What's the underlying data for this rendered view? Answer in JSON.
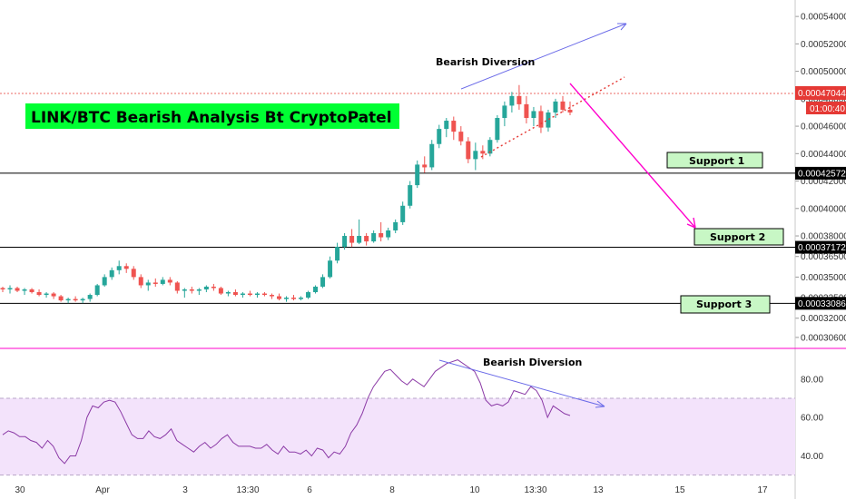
{
  "chart_data": [
    {
      "type": "candlestick",
      "title": "LINK/BTC Bearish Analysis Bt CryptoPatel",
      "ylim": [
        0.000298,
        0.000552
      ],
      "price_ticks": [
        "0.00054000",
        "0.00052000",
        "0.00050000",
        "0.00048000",
        "0.00046000",
        "0.00044000",
        "0.00042000",
        "0.00040000",
        "0.00038000",
        "0.00036500",
        "0.00035000",
        "0.00033500",
        "0.00032000",
        "0.00030600"
      ],
      "x_ticks": [
        "30",
        "Apr",
        "3",
        "13:30",
        "6",
        "8",
        "10",
        "13:30",
        "13",
        "15",
        "17"
      ],
      "current_price": "0.00047044",
      "countdown": "01:00:40",
      "supports": [
        {
          "label": "Support 1",
          "price": "0.00042572",
          "value": 0.00042572
        },
        {
          "label": "Support 2",
          "price": "0.00037172",
          "value": 0.00037172
        },
        {
          "label": "Support 3",
          "price": "0.00033086",
          "value": 0.00033086
        }
      ],
      "annotation": "Bearish Diversion",
      "candles": [
        [
          0.000342,
          0.000343,
          0.000339,
          0.000341
        ],
        [
          0.000341,
          0.000344,
          0.000338,
          0.000342
        ],
        [
          0.000342,
          0.000343,
          0.000339,
          0.00034
        ],
        [
          0.00034,
          0.000342,
          0.000337,
          0.000341
        ],
        [
          0.000341,
          0.000342,
          0.000338,
          0.000339
        ],
        [
          0.000339,
          0.000341,
          0.000336,
          0.000337
        ],
        [
          0.000337,
          0.000339,
          0.000335,
          0.000338
        ],
        [
          0.000338,
          0.000339,
          0.000334,
          0.000336
        ],
        [
          0.000336,
          0.000337,
          0.000332,
          0.000333
        ],
        [
          0.000333,
          0.000335,
          0.000331,
          0.000334
        ],
        [
          0.000334,
          0.000336,
          0.000332,
          0.000333
        ],
        [
          0.000333,
          0.000335,
          0.000331,
          0.000334
        ],
        [
          0.000334,
          0.000338,
          0.000332,
          0.000337
        ],
        [
          0.000337,
          0.000345,
          0.000336,
          0.000344
        ],
        [
          0.000344,
          0.000352,
          0.000343,
          0.00035
        ],
        [
          0.00035,
          0.000357,
          0.000348,
          0.000355
        ],
        [
          0.000355,
          0.000362,
          0.000352,
          0.000358
        ],
        [
          0.000358,
          0.00036,
          0.000353,
          0.000356
        ],
        [
          0.000356,
          0.000358,
          0.000348,
          0.00035
        ],
        [
          0.00035,
          0.000352,
          0.000342,
          0.000344
        ],
        [
          0.000344,
          0.000348,
          0.00034,
          0.000346
        ],
        [
          0.000346,
          0.000349,
          0.000343,
          0.000345
        ],
        [
          0.000345,
          0.00035,
          0.000344,
          0.000348
        ],
        [
          0.000348,
          0.00035,
          0.000344,
          0.000346
        ],
        [
          0.000346,
          0.000347,
          0.000338,
          0.00034
        ],
        [
          0.00034,
          0.000342,
          0.000335,
          0.000341
        ],
        [
          0.000341,
          0.000343,
          0.000338,
          0.00034
        ],
        [
          0.00034,
          0.000342,
          0.000337,
          0.000341
        ],
        [
          0.000341,
          0.000344,
          0.000339,
          0.000343
        ],
        [
          0.000343,
          0.000345,
          0.00034,
          0.000342
        ],
        [
          0.000342,
          0.000343,
          0.000337,
          0.000338
        ],
        [
          0.000338,
          0.00034,
          0.000336,
          0.000339
        ],
        [
          0.000339,
          0.000341,
          0.000336,
          0.000337
        ],
        [
          0.000337,
          0.000339,
          0.000335,
          0.000338
        ],
        [
          0.000338,
          0.00034,
          0.000336,
          0.000337
        ],
        [
          0.000337,
          0.000339,
          0.000335,
          0.000338
        ],
        [
          0.000338,
          0.000339,
          0.000336,
          0.000337
        ],
        [
          0.000337,
          0.000338,
          0.000334,
          0.000336
        ],
        [
          0.000336,
          0.000338,
          0.000333,
          0.000334
        ],
        [
          0.000334,
          0.000336,
          0.000332,
          0.000335
        ],
        [
          0.000335,
          0.000337,
          0.000333,
          0.000334
        ],
        [
          0.000334,
          0.000336,
          0.000333,
          0.000335
        ],
        [
          0.000335,
          0.00034,
          0.000334,
          0.000339
        ],
        [
          0.000339,
          0.000344,
          0.000338,
          0.000343
        ],
        [
          0.000343,
          0.000352,
          0.000342,
          0.00035
        ],
        [
          0.00035,
          0.000365,
          0.000349,
          0.000362
        ],
        [
          0.000362,
          0.000375,
          0.00036,
          0.000372
        ],
        [
          0.000372,
          0.000382,
          0.00037,
          0.00038
        ],
        [
          0.00038,
          0.000385,
          0.000372,
          0.000375
        ],
        [
          0.000375,
          0.000392,
          0.000374,
          0.00038
        ],
        [
          0.00038,
          0.000382,
          0.000373,
          0.000376
        ],
        [
          0.000376,
          0.000384,
          0.000375,
          0.000382
        ],
        [
          0.000382,
          0.00039,
          0.000376,
          0.000379
        ],
        [
          0.000379,
          0.000386,
          0.000377,
          0.000384
        ],
        [
          0.000384,
          0.000392,
          0.000382,
          0.00039
        ],
        [
          0.00039,
          0.000405,
          0.000388,
          0.000402
        ],
        [
          0.000402,
          0.00042,
          0.0004,
          0.000417
        ],
        [
          0.000417,
          0.000435,
          0.000415,
          0.000432
        ],
        [
          0.000432,
          0.000438,
          0.000426,
          0.00043
        ],
        [
          0.00043,
          0.00045,
          0.000428,
          0.000447
        ],
        [
          0.000447,
          0.000461,
          0.000444,
          0.000458
        ],
        [
          0.000458,
          0.000466,
          0.000452,
          0.000464
        ],
        [
          0.000464,
          0.000467,
          0.00045,
          0.000456
        ],
        [
          0.000456,
          0.00046,
          0.000446,
          0.000449
        ],
        [
          0.000449,
          0.000452,
          0.000433,
          0.000436
        ],
        [
          0.000436,
          0.000448,
          0.000428,
          0.000442
        ],
        [
          0.000442,
          0.000446,
          0.000436,
          0.00044
        ],
        [
          0.00044,
          0.000452,
          0.000438,
          0.00045
        ],
        [
          0.00045,
          0.000468,
          0.000448,
          0.000466
        ],
        [
          0.000466,
          0.000478,
          0.00046,
          0.000475
        ],
        [
          0.000475,
          0.000485,
          0.00047,
          0.000482
        ],
        [
          0.000482,
          0.00049,
          0.000472,
          0.000476
        ],
        [
          0.000476,
          0.000482,
          0.000462,
          0.000466
        ],
        [
          0.000466,
          0.000474,
          0.00046,
          0.000471
        ],
        [
          0.000471,
          0.000475,
          0.000455,
          0.000459
        ],
        [
          0.000459,
          0.000472,
          0.000456,
          0.00047
        ],
        [
          0.00047,
          0.00048,
          0.000466,
          0.000478
        ],
        [
          0.000478,
          0.000482,
          0.00047,
          0.000472
        ],
        [
          0.000472,
          0.000478,
          0.000468,
          0.00047
        ]
      ]
    },
    {
      "type": "line",
      "title": "",
      "ylim": [
        27,
        95
      ],
      "y_ticks": [
        "80.00",
        "60.00",
        "40.00"
      ],
      "bands": [
        30,
        70
      ],
      "annotation": "Bearish Diversion",
      "values": [
        51,
        53,
        52,
        50,
        50,
        48,
        47,
        44,
        48,
        45,
        39,
        36,
        40,
        40,
        48,
        60,
        66,
        65,
        68,
        69,
        68,
        63,
        57,
        51,
        49,
        49,
        53,
        50,
        49,
        51,
        54,
        48,
        46,
        44,
        42,
        45,
        47,
        44,
        46,
        49,
        51,
        47,
        45,
        45,
        45,
        44,
        44,
        46,
        43,
        41,
        45,
        42,
        42,
        41,
        43,
        40,
        44,
        43,
        39,
        42,
        41,
        45,
        52,
        56,
        62,
        70,
        76,
        80,
        84,
        85,
        82,
        79,
        77,
        80,
        78,
        76,
        80,
        84,
        86,
        88,
        89,
        90,
        88,
        86,
        84,
        78,
        69,
        66,
        67,
        66,
        68,
        74,
        73,
        72,
        76,
        74,
        69,
        60,
        66,
        64,
        62,
        61
      ]
    }
  ]
}
